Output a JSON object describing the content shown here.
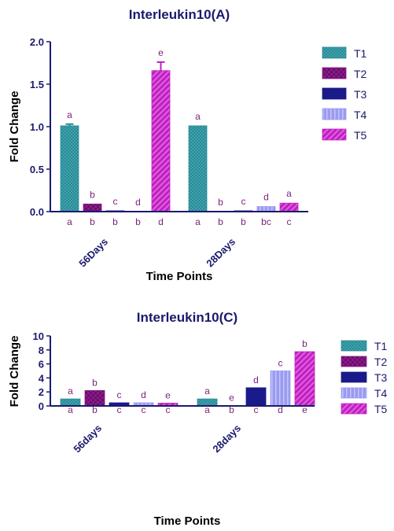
{
  "colors": {
    "T1": "#2a8a96",
    "T2": "#8a1a8a",
    "T3": "#1a1a8a",
    "T4": "#9a9af0",
    "T5": "#c020c0",
    "axis": "#1a1a6e",
    "letters": "#7a1f7a"
  },
  "chart_data": [
    {
      "type": "bar",
      "title": "Interleukin10(A)",
      "xlabel": "Time Points",
      "ylabel": "Fold Change",
      "ylim": [
        0,
        2.0
      ],
      "yticks": [
        "0.0",
        "0.5",
        "1.0",
        "1.5",
        "2.0"
      ],
      "categories": [
        "56Days",
        "28Days"
      ],
      "legend_position": "right",
      "series": [
        {
          "name": "T1",
          "values": [
            1.01,
            1.01
          ],
          "errors": [
            0.02,
            0
          ],
          "top_letters": [
            "a",
            "a"
          ],
          "bottom_letters": [
            "a",
            "a"
          ]
        },
        {
          "name": "T2",
          "values": [
            0.09,
            0.0
          ],
          "errors": [
            0,
            0
          ],
          "top_letters": [
            "b",
            "b"
          ],
          "bottom_letters": [
            "b",
            "b"
          ]
        },
        {
          "name": "T3",
          "values": [
            0.01,
            0.01
          ],
          "errors": [
            0,
            0
          ],
          "top_letters": [
            "c",
            "c"
          ],
          "bottom_letters": [
            "b",
            "b"
          ]
        },
        {
          "name": "T4",
          "values": [
            0.0,
            0.06
          ],
          "errors": [
            0,
            0
          ],
          "top_letters": [
            "d",
            "d"
          ],
          "bottom_letters": [
            "b",
            "bc"
          ]
        },
        {
          "name": "T5",
          "values": [
            1.66,
            0.1
          ],
          "errors": [
            0.1,
            0
          ],
          "top_letters": [
            "e",
            "a"
          ],
          "bottom_letters": [
            "d",
            "c"
          ]
        }
      ]
    },
    {
      "type": "bar",
      "title": "Interleukin10(C)",
      "xlabel": "Time Points",
      "ylabel": "Fold Change",
      "ylim": [
        0,
        10
      ],
      "yticks": [
        "0",
        "2",
        "4",
        "6",
        "8",
        "10"
      ],
      "categories": [
        "56days",
        "28days"
      ],
      "legend_position": "right",
      "series": [
        {
          "name": "T1",
          "values": [
            1.0,
            1.0
          ],
          "errors": [
            0,
            0
          ],
          "top_letters": [
            "a",
            "a"
          ],
          "bottom_letters": [
            "a",
            "a"
          ]
        },
        {
          "name": "T2",
          "values": [
            2.2,
            0.05
          ],
          "errors": [
            0,
            0
          ],
          "top_letters": [
            "b",
            "e"
          ],
          "bottom_letters": [
            "b",
            "b"
          ]
        },
        {
          "name": "T3",
          "values": [
            0.45,
            2.6
          ],
          "errors": [
            0,
            0
          ],
          "top_letters": [
            "c",
            "d"
          ],
          "bottom_letters": [
            "c",
            "c"
          ]
        },
        {
          "name": "T4",
          "values": [
            0.45,
            5.0
          ],
          "errors": [
            0,
            0
          ],
          "top_letters": [
            "d",
            "c"
          ],
          "bottom_letters": [
            "c",
            "d"
          ]
        },
        {
          "name": "T5",
          "values": [
            0.4,
            7.75
          ],
          "errors": [
            0,
            0
          ],
          "top_letters": [
            "e",
            "b"
          ],
          "bottom_letters": [
            "c",
            "e"
          ]
        }
      ]
    }
  ]
}
